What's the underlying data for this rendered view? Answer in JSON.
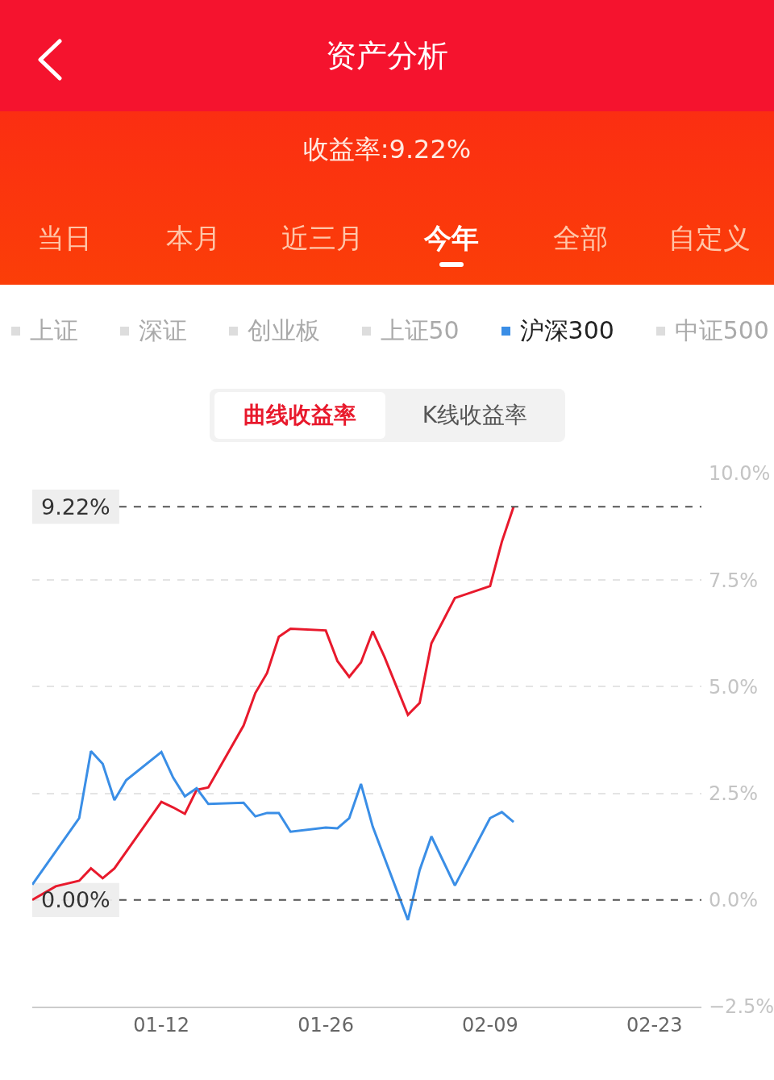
{
  "chart_data": {
    "type": "line",
    "title": "资产分析",
    "subtitle": "收益率:9.22%",
    "annotations": [
      "当日",
      "本月",
      "近三月",
      "今年",
      "全部",
      "自定义",
      "上证",
      "深证",
      "创业板",
      "上证50",
      "中证500",
      "曲线收益率",
      "K线收益率"
    ],
    "series": [
      {
        "color": "#e8192c",
        "x": [
          "--01-01",
          "--01-03",
          "--01-05",
          "--01-06",
          "--01-07",
          "--01-08",
          "--01-12",
          "--01-13",
          "--01-14",
          "--01-15",
          "--01-16",
          "--01-19",
          "--01-20",
          "--01-21",
          "--01-22",
          "--01-23",
          "--01-26",
          "--01-27",
          "--01-28",
          "--01-29",
          "--01-30",
          "--01-31",
          "--02-02",
          "--02-03",
          "--02-04",
          "--02-06",
          "--02-09",
          "--02-10",
          "--02-11"
        ],
        "values": [
          0,
          0.32,
          0.45,
          0.74,
          0.51,
          0.74,
          2.3,
          2.17,
          2.02,
          2.58,
          2.64,
          4.09,
          4.85,
          5.32,
          6.17,
          6.36,
          6.32,
          5.6,
          5.23,
          5.57,
          6.3,
          5.7,
          4.34,
          4.62,
          6.02,
          7.08,
          7.36,
          8.4,
          9.22
        ]
      },
      {
        "name": "沪深300",
        "color": "#3a8ee6",
        "x": [
          "--01-01",
          "--01-05",
          "--01-06",
          "--01-07",
          "--01-08",
          "--01-09",
          "--01-12",
          "--01-13",
          "--01-14",
          "--01-15",
          "--01-16",
          "--01-19",
          "--01-20",
          "--01-21",
          "--01-22",
          "--01-23",
          "--01-26",
          "--01-27",
          "--01-28",
          "--01-29",
          "--01-30",
          "--02-02",
          "--02-03",
          "--02-04",
          "--02-06",
          "--02-09",
          "--02-10",
          "--02-11"
        ],
        "values": [
          0.36,
          1.92,
          3.49,
          3.19,
          2.34,
          2.81,
          3.47,
          2.87,
          2.43,
          2.62,
          2.25,
          2.28,
          1.96,
          2.04,
          2.04,
          1.6,
          1.7,
          1.68,
          1.92,
          2.72,
          1.72,
          -0.47,
          0.7,
          1.49,
          0.34,
          1.92,
          2.06,
          1.83
        ]
      }
    ],
    "xlim": [
      "--01-01",
      "--02-27"
    ],
    "xticks": [
      {
        "value": "--01-12",
        "label": "01-12"
      },
      {
        "value": "--01-26",
        "label": "01-26"
      },
      {
        "value": "--02-09",
        "label": "02-09"
      },
      {
        "value": "--02-23",
        "label": "02-23"
      }
    ],
    "ylim": [
      -2.5,
      10
    ],
    "yticks": [
      {
        "value": -2.5,
        "label": "−2.5%"
      },
      {
        "value": 0,
        "label": "0.0%"
      },
      {
        "value": 2.5,
        "label": "2.5%"
      },
      {
        "value": 5,
        "label": "5.0%"
      },
      {
        "value": 7.5,
        "label": "7.5%"
      },
      {
        "value": 10,
        "label": "10.0%"
      }
    ],
    "ref_lines": [
      {
        "axis": "y",
        "value": 9.22,
        "label": "9.22%",
        "color": "#555555",
        "line_style": "dashed"
      },
      {
        "axis": "y",
        "value": 0,
        "label": "0.00%",
        "color": "#555555",
        "line_style": "dashed"
      }
    ],
    "grid": "y",
    "legend": "top"
  }
}
